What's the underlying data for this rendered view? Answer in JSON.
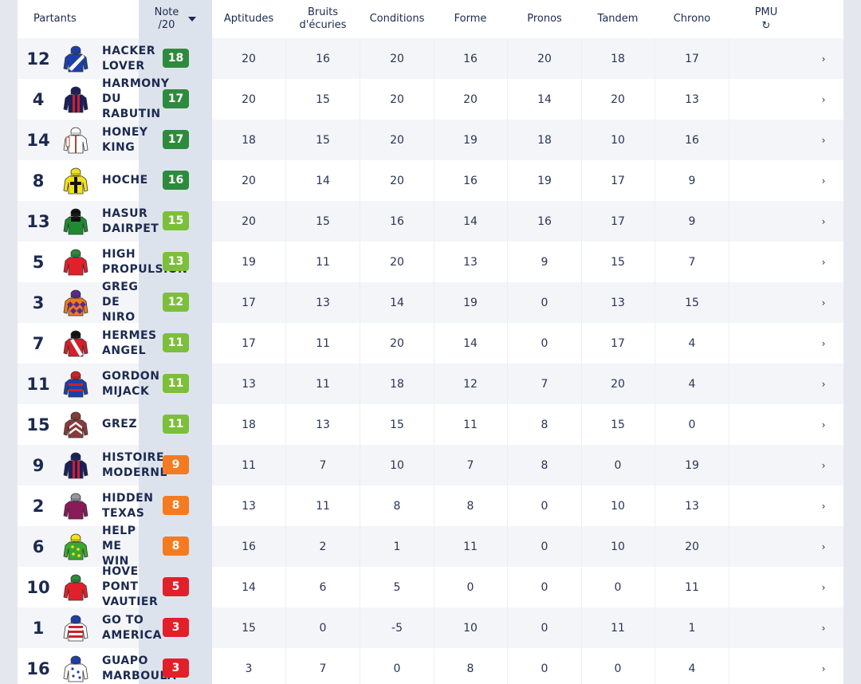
{
  "header": {
    "partants": "Partants",
    "note_line1": "Note",
    "note_line2": "/20",
    "columns": [
      "Aptitudes",
      "Bruits d'écuries",
      "Conditions",
      "Forme",
      "Pronos",
      "Tandem",
      "Chrono"
    ],
    "bruits_line1": "Bruits",
    "bruits_line2": "d'écuries",
    "pmu": "PMU",
    "pmu_icon": "refresh-icon"
  },
  "colors": {
    "dark_green": "#2e8a3c",
    "light_green": "#7cbf3a",
    "orange": "#f47b1f",
    "red": "#e2202a"
  },
  "rows": [
    {
      "num": "12",
      "name": [
        "HACKER",
        "LOVER"
      ],
      "note": "18",
      "level": "dark_green",
      "vals": [
        "20",
        "16",
        "20",
        "16",
        "20",
        "18",
        "17"
      ],
      "silk": "blue-white-diagonal"
    },
    {
      "num": "4",
      "name": [
        "HARMONY",
        "DU",
        "RABUTIN"
      ],
      "note": "17",
      "level": "dark_green",
      "vals": [
        "20",
        "15",
        "20",
        "20",
        "14",
        "20",
        "13"
      ],
      "silk": "navy-red-stripes"
    },
    {
      "num": "14",
      "name": [
        "HONEY",
        "KING"
      ],
      "note": "17",
      "level": "dark_green",
      "vals": [
        "18",
        "15",
        "20",
        "19",
        "18",
        "10",
        "16"
      ],
      "silk": "white-brown"
    },
    {
      "num": "8",
      "name": [
        "HOCHE"
      ],
      "note": "16",
      "level": "dark_green",
      "vals": [
        "20",
        "14",
        "20",
        "16",
        "19",
        "17",
        "9"
      ],
      "silk": "yellow-black-cross"
    },
    {
      "num": "13",
      "name": [
        "HASUR",
        "DAIRPET"
      ],
      "note": "15",
      "level": "light_green",
      "vals": [
        "20",
        "15",
        "16",
        "14",
        "16",
        "17",
        "9"
      ],
      "silk": "green-black"
    },
    {
      "num": "5",
      "name": [
        "HIGH",
        "PROPULSION"
      ],
      "note": "13",
      "level": "light_green",
      "vals": [
        "19",
        "11",
        "20",
        "13",
        "9",
        "15",
        "7"
      ],
      "silk": "red-green"
    },
    {
      "num": "3",
      "name": [
        "GREG",
        "DE",
        "NIRO"
      ],
      "note": "12",
      "level": "light_green",
      "vals": [
        "17",
        "13",
        "14",
        "19",
        "0",
        "13",
        "15"
      ],
      "silk": "orange-purple-diamonds"
    },
    {
      "num": "7",
      "name": [
        "HERMES",
        "ANGEL"
      ],
      "note": "11",
      "level": "light_green",
      "vals": [
        "17",
        "11",
        "20",
        "14",
        "0",
        "17",
        "4"
      ],
      "silk": "red-white-sash"
    },
    {
      "num": "11",
      "name": [
        "GORDON",
        "MIJACK"
      ],
      "note": "11",
      "level": "light_green",
      "vals": [
        "13",
        "11",
        "18",
        "12",
        "7",
        "20",
        "4"
      ],
      "silk": "blue-red-hoops"
    },
    {
      "num": "15",
      "name": [
        "GREZ"
      ],
      "note": "11",
      "level": "light_green",
      "vals": [
        "18",
        "13",
        "15",
        "11",
        "8",
        "15",
        "0"
      ],
      "silk": "brown-white-chevrons"
    },
    {
      "num": "9",
      "name": [
        "HISTOIRE",
        "MODERNE"
      ],
      "note": "9",
      "level": "orange",
      "vals": [
        "11",
        "7",
        "10",
        "7",
        "8",
        "0",
        "19"
      ],
      "silk": "navy-red-stripes"
    },
    {
      "num": "2",
      "name": [
        "HIDDEN",
        "TEXAS"
      ],
      "note": "8",
      "level": "orange",
      "vals": [
        "13",
        "11",
        "8",
        "8",
        "0",
        "10",
        "13"
      ],
      "silk": "purple-grey"
    },
    {
      "num": "6",
      "name": [
        "HELP",
        "ME",
        "WIN"
      ],
      "note": "8",
      "level": "orange",
      "vals": [
        "16",
        "2",
        "1",
        "11",
        "0",
        "10",
        "20"
      ],
      "silk": "green-yellow-dots"
    },
    {
      "num": "10",
      "name": [
        "HOVE",
        "PONT",
        "VAUTIER"
      ],
      "note": "5",
      "level": "red",
      "vals": [
        "14",
        "6",
        "5",
        "0",
        "0",
        "0",
        "11"
      ],
      "silk": "red-green"
    },
    {
      "num": "1",
      "name": [
        "GO TO",
        "AMERICA"
      ],
      "note": "3",
      "level": "red",
      "vals": [
        "15",
        "0",
        "-5",
        "10",
        "0",
        "11",
        "1"
      ],
      "silk": "red-white-hoops"
    },
    {
      "num": "16",
      "name": [
        "GUAPO",
        "MARBOULA"
      ],
      "note": "3",
      "level": "red",
      "vals": [
        "3",
        "7",
        "0",
        "8",
        "0",
        "0",
        "4"
      ],
      "silk": "white-blue-dots"
    }
  ]
}
